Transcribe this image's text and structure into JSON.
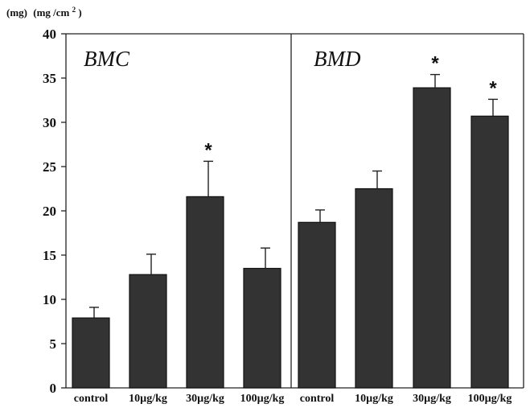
{
  "chart_data": {
    "type": "bar",
    "unit_labels": [
      "(mg)",
      "(mg /cm",
      "2",
      ")"
    ],
    "ylim": [
      0,
      40
    ],
    "yticks": [
      "0",
      "5",
      "10",
      "15",
      "20",
      "25",
      "30",
      "35",
      "40"
    ],
    "panels": [
      {
        "title": "BMC",
        "categories": [
          "control",
          "10µg/kg",
          "30µg/kg",
          "100µg/kg"
        ],
        "values": [
          7.9,
          12.8,
          21.6,
          13.5
        ],
        "errors": [
          1.2,
          2.3,
          4.0,
          2.3
        ],
        "significant": [
          "",
          "",
          "*",
          ""
        ]
      },
      {
        "title": "BMD",
        "categories": [
          "control",
          "10µg/kg",
          "30µg/kg",
          "100µg/kg"
        ],
        "values": [
          18.7,
          22.5,
          33.9,
          30.7
        ],
        "errors": [
          1.4,
          2.0,
          1.5,
          1.9
        ],
        "significant": [
          "",
          "",
          "*",
          "*"
        ]
      }
    ]
  },
  "colors": {
    "bar": "#333333",
    "axis": "#222222",
    "background": "#ffffff"
  }
}
